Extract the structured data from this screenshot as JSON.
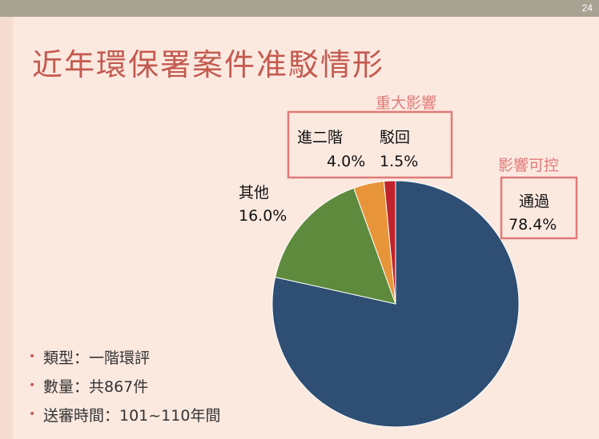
{
  "page_number": "24",
  "title": "近年環保署案件准駁情形",
  "bullets": [
    "類型：一階環評",
    "數量：共867件",
    "送審時間：101~110年間"
  ],
  "callouts": {
    "major_impact": "重大影響",
    "controllable_impact": "影響可控"
  },
  "colors": {
    "background": "#fbe9e0",
    "title": "#c45a4f",
    "callout": "#e07a78"
  },
  "chart_data": {
    "type": "pie",
    "slices": [
      {
        "name": "通過",
        "value": 78.4,
        "label": "78.4%",
        "color": "#2e4e73"
      },
      {
        "name": "其他",
        "value": 16.0,
        "label": "16.0%",
        "color": "#5d8a3d"
      },
      {
        "name": "進二階",
        "value": 4.0,
        "label": "4.0%",
        "color": "#e8953a"
      },
      {
        "name": "駁回",
        "value": 1.5,
        "label": "1.5%",
        "color": "#c0232b"
      }
    ]
  }
}
